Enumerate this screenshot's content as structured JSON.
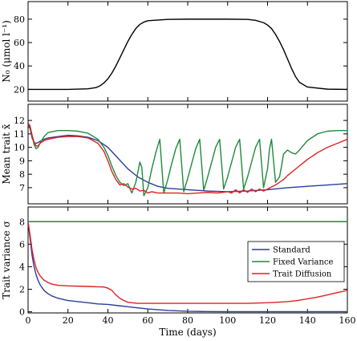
{
  "chart_data": [
    {
      "type": "line",
      "ylabel": "N₀ (μmol l⁻¹)",
      "xlim": [
        0,
        160
      ],
      "ylim": [
        10,
        95
      ],
      "yticks": [
        20,
        40,
        60,
        80
      ],
      "xticks": [
        0,
        20,
        40,
        60,
        80,
        100,
        120,
        140,
        160
      ],
      "grid": false,
      "series": [
        {
          "color": "#000000",
          "x": [
            0,
            10,
            20,
            30,
            34,
            36,
            38,
            40,
            42,
            44,
            46,
            48,
            50,
            52,
            54,
            56,
            58,
            60,
            70,
            80,
            90,
            100,
            110,
            114,
            118,
            120,
            122,
            124,
            126,
            128,
            130,
            132,
            134,
            136,
            140,
            150,
            160
          ],
          "y": [
            20,
            20,
            20,
            20.5,
            21.5,
            23,
            25.5,
            29,
            34,
            40,
            47,
            54,
            61,
            67,
            72,
            75.5,
            77.5,
            78.7,
            79.8,
            80,
            80,
            80,
            79.8,
            79,
            77,
            75,
            72,
            67,
            61,
            54,
            46,
            38,
            31,
            26,
            22,
            20.2,
            20
          ]
        }
      ]
    },
    {
      "type": "line",
      "ylabel": "Mean trait x̄",
      "xlim": [
        0,
        160
      ],
      "ylim": [
        5.8,
        13.2
      ],
      "yticks": [
        7,
        8,
        9,
        10,
        11,
        12
      ],
      "xticks": [
        0,
        20,
        40,
        60,
        80,
        100,
        120,
        140,
        160
      ],
      "grid": false,
      "series": [
        {
          "name": "Standard",
          "color": "#2c3c9c",
          "x": [
            0,
            1,
            2,
            3,
            4,
            5,
            6,
            8,
            10,
            15,
            20,
            25,
            30,
            35,
            40,
            45,
            50,
            55,
            60,
            65,
            70,
            80,
            90,
            100,
            110,
            120,
            130,
            140,
            150,
            160
          ],
          "y": [
            11.6,
            11.4,
            10.7,
            10.35,
            10.3,
            10.35,
            10.45,
            10.6,
            10.7,
            10.8,
            10.9,
            10.85,
            10.75,
            10.5,
            10.0,
            9.2,
            8.4,
            7.8,
            7.4,
            7.1,
            6.95,
            6.85,
            6.75,
            6.7,
            6.75,
            6.85,
            7.0,
            7.1,
            7.2,
            7.3
          ]
        },
        {
          "name": "Fixed Variance",
          "color": "#1f8a3c",
          "x": [
            0,
            1,
            2,
            3,
            4,
            5,
            6,
            8,
            10,
            15,
            20,
            25,
            30,
            35,
            38,
            40,
            42,
            44,
            46,
            48,
            50,
            52,
            54,
            56,
            57,
            58,
            60,
            62,
            64,
            66,
            68,
            70,
            72,
            74,
            76,
            78,
            80,
            82,
            84,
            86,
            88,
            90,
            92,
            94,
            96,
            98,
            100,
            102,
            104,
            106,
            108,
            110,
            112,
            114,
            116,
            118,
            120,
            121,
            122,
            124,
            126,
            127,
            128,
            130,
            132,
            134,
            136,
            140,
            145,
            150,
            155,
            160
          ],
          "y": [
            11.8,
            11.6,
            10.9,
            10.2,
            9.9,
            10.0,
            10.3,
            10.8,
            11.1,
            11.25,
            11.25,
            11.2,
            11.05,
            10.6,
            10.0,
            9.4,
            8.6,
            7.9,
            7.4,
            7.15,
            7.3,
            6.6,
            7.4,
            8.9,
            8.5,
            6.4,
            7.0,
            8.4,
            9.6,
            10.6,
            6.6,
            7.6,
            8.8,
            9.9,
            10.6,
            6.7,
            7.7,
            8.8,
            9.9,
            10.6,
            6.8,
            7.8,
            8.9,
            10.0,
            10.6,
            6.9,
            7.8,
            8.9,
            10.0,
            10.6,
            6.9,
            7.8,
            8.9,
            10.0,
            10.6,
            7.0,
            8.4,
            9.9,
            10.6,
            7.4,
            7.8,
            8.6,
            9.5,
            9.8,
            9.6,
            9.5,
            9.8,
            10.5,
            11.0,
            11.2,
            11.25,
            11.25
          ]
        },
        {
          "name": "Trait Diffusion",
          "color": "#dd2222",
          "x": [
            0,
            1,
            2,
            3,
            4,
            5,
            6,
            8,
            10,
            15,
            20,
            25,
            30,
            35,
            38,
            40,
            42,
            44,
            46,
            48,
            50,
            52,
            54,
            56,
            58,
            60,
            62,
            65,
            70,
            75,
            80,
            85,
            90,
            95,
            100,
            102,
            104,
            106,
            108,
            110,
            112,
            114,
            116,
            118,
            120,
            122,
            124,
            126,
            128,
            130,
            135,
            140,
            145,
            150,
            155,
            160
          ],
          "y": [
            11.8,
            11.5,
            10.9,
            10.4,
            10.1,
            10.1,
            10.3,
            10.5,
            10.6,
            10.75,
            10.8,
            10.8,
            10.7,
            10.3,
            9.7,
            9.0,
            8.2,
            7.6,
            7.2,
            7.3,
            7.05,
            6.9,
            6.95,
            6.75,
            6.8,
            6.6,
            6.7,
            6.6,
            6.6,
            6.6,
            6.55,
            6.6,
            6.65,
            6.6,
            6.7,
            6.6,
            6.85,
            6.6,
            6.85,
            6.65,
            6.9,
            6.7,
            6.9,
            6.75,
            6.9,
            7.05,
            7.2,
            7.4,
            7.6,
            7.9,
            8.5,
            9.1,
            9.6,
            10.0,
            10.3,
            10.6
          ]
        }
      ]
    },
    {
      "type": "line",
      "ylabel": "Trait variance σ",
      "xlim": [
        0,
        160
      ],
      "ylim": [
        -0.1,
        9.3
      ],
      "yticks": [
        0,
        2,
        4,
        6,
        8
      ],
      "xticks": [
        0,
        20,
        40,
        60,
        80,
        100,
        120,
        140,
        160
      ],
      "xticklabels": [
        "0",
        "20",
        "40",
        "60",
        "80",
        "100",
        "120",
        "140",
        "160"
      ],
      "xlabel": "Time (days)",
      "grid": false,
      "legend": {
        "position": "right",
        "entries": [
          "Standard",
          "Fixed Variance",
          "Trait Diffusion"
        ]
      },
      "series": [
        {
          "name": "Standard",
          "color": "#2c3c9c",
          "x": [
            0,
            1,
            2,
            3,
            4,
            5,
            6,
            8,
            10,
            12,
            15,
            20,
            25,
            30,
            35,
            40,
            45,
            50,
            55,
            60,
            70,
            80,
            90,
            100,
            110,
            120,
            130,
            140,
            150,
            160
          ],
          "y": [
            8,
            6.5,
            5.0,
            4.0,
            3.3,
            2.8,
            2.4,
            1.9,
            1.6,
            1.4,
            1.2,
            1.0,
            0.9,
            0.8,
            0.7,
            0.65,
            0.55,
            0.45,
            0.35,
            0.25,
            0.12,
            0.05,
            0.02,
            0.01,
            0.01,
            0.01,
            0.01,
            0.01,
            0.01,
            0.01
          ]
        },
        {
          "name": "Fixed Variance",
          "color": "#1f8a3c",
          "x": [
            0,
            160
          ],
          "y": [
            8,
            8
          ]
        },
        {
          "name": "Trait Diffusion",
          "color": "#dd2222",
          "x": [
            0,
            1,
            2,
            3,
            4,
            5,
            6,
            8,
            10,
            12,
            15,
            20,
            30,
            38,
            40,
            42,
            44,
            46,
            48,
            50,
            52,
            55,
            60,
            70,
            80,
            90,
            100,
            110,
            120,
            125,
            130,
            135,
            140,
            145,
            150,
            155,
            160
          ],
          "y": [
            8,
            6.8,
            5.5,
            4.6,
            3.9,
            3.5,
            3.2,
            2.8,
            2.6,
            2.45,
            2.35,
            2.3,
            2.25,
            2.2,
            2.1,
            1.9,
            1.5,
            1.2,
            1.0,
            0.85,
            0.8,
            0.75,
            0.75,
            0.75,
            0.75,
            0.75,
            0.75,
            0.75,
            0.8,
            0.85,
            0.9,
            1.0,
            1.15,
            1.3,
            1.5,
            1.7,
            1.9
          ]
        }
      ]
    }
  ]
}
